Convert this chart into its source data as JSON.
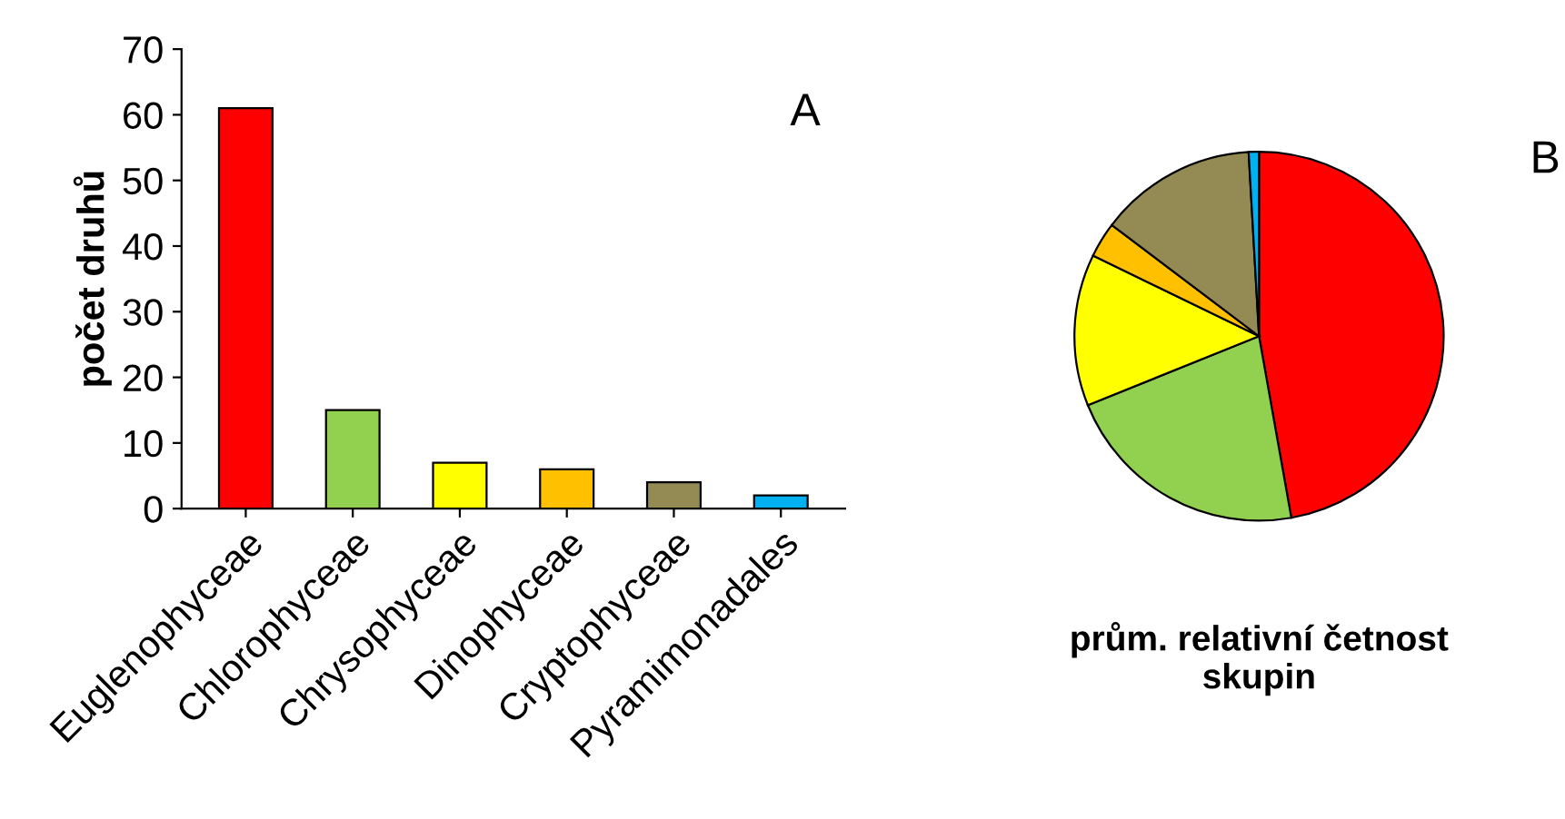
{
  "chart_data": [
    {
      "type": "bar",
      "ylabel": "počet druhů",
      "categories": [
        "Euglenophyceae",
        "Chlorophyceae",
        "Chrysophyceae",
        "Dinophyceae",
        "Cryptophyceae",
        "Pyramimonadales"
      ],
      "values": [
        61,
        15,
        7,
        6,
        4,
        2
      ],
      "colors": [
        "#ff0000",
        "#92d050",
        "#ffff00",
        "#ffc000",
        "#948a54",
        "#00b0f0"
      ],
      "ylim": [
        0,
        70
      ],
      "yticks": [
        0,
        10,
        20,
        30,
        40,
        50,
        60,
        70
      ],
      "grid": false,
      "legend": false,
      "annotations": [
        "A"
      ]
    },
    {
      "type": "pie",
      "title": "prům. relativní četnost\nskupin",
      "categories": [
        null,
        null,
        null,
        null,
        null,
        null
      ],
      "values": [
        47.2,
        21.7,
        13.3,
        3.1,
        13.8,
        0.9
      ],
      "colors": [
        "#ff0000",
        "#92d050",
        "#ffff00",
        "#ffc000",
        "#948a54",
        "#00b0f0"
      ],
      "legend": false,
      "annotations": [
        "B"
      ]
    }
  ]
}
